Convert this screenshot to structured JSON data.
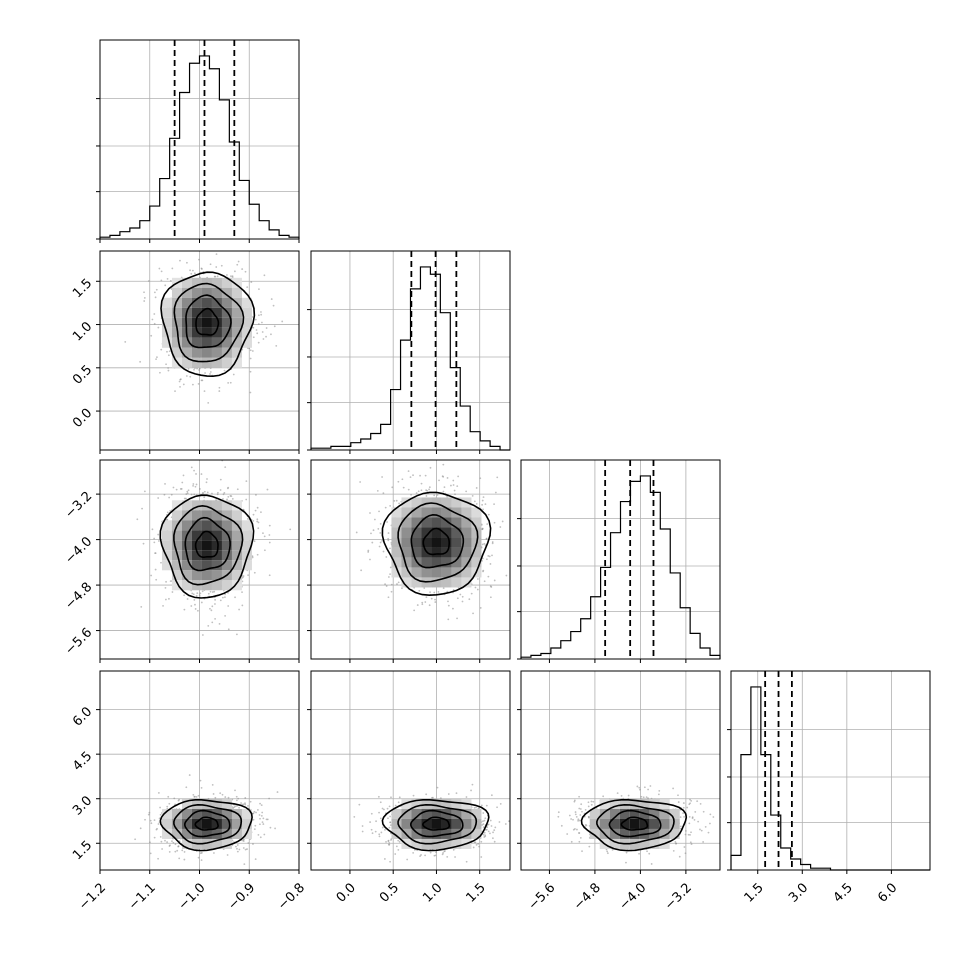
{
  "chart_data": {
    "type": "corner",
    "params": [
      {
        "ticks": [
          "−1.2",
          "−1.1",
          "−1.0",
          "−0.9",
          "−0.8"
        ],
        "tick_values": [
          -1.2,
          -1.1,
          -1.0,
          -0.9,
          -0.8
        ],
        "range": [
          -1.2,
          -0.8
        ],
        "quantiles": [
          -1.05,
          -0.99,
          -0.93
        ]
      },
      {
        "ticks": [
          "0.0",
          "0.5",
          "1.0",
          "1.5"
        ],
        "tick_values": [
          0.0,
          0.5,
          1.0,
          1.5
        ],
        "range": [
          -0.45,
          1.85
        ],
        "quantiles": [
          0.71,
          0.99,
          1.23
        ]
      },
      {
        "ticks": [
          "−5.6",
          "−4.8",
          "−4.0",
          "−3.2"
        ],
        "tick_values": [
          -5.6,
          -4.8,
          -4.0,
          -3.2
        ],
        "range": [
          -6.1,
          -2.6
        ],
        "quantiles": [
          -4.62,
          -4.18,
          -3.77
        ]
      },
      {
        "ticks": [
          "1.5",
          "3.0",
          "4.5",
          "6.0"
        ],
        "tick_values": [
          1.5,
          3.0,
          4.5,
          6.0
        ],
        "range": [
          0.6,
          7.3
        ],
        "quantiles": [
          1.75,
          2.2,
          2.65
        ]
      }
    ],
    "histograms": [
      [
        0.01,
        0.02,
        0.04,
        0.06,
        0.1,
        0.18,
        0.33,
        0.55,
        0.8,
        0.96,
        1.0,
        0.93,
        0.76,
        0.53,
        0.32,
        0.19,
        0.1,
        0.05,
        0.02,
        0.01
      ],
      [
        0.01,
        0.01,
        0.02,
        0.02,
        0.04,
        0.06,
        0.09,
        0.14,
        0.33,
        0.6,
        0.88,
        1.0,
        0.96,
        0.75,
        0.45,
        0.24,
        0.1,
        0.05,
        0.02,
        0.0
      ],
      [
        0.01,
        0.02,
        0.03,
        0.06,
        0.1,
        0.15,
        0.22,
        0.34,
        0.5,
        0.69,
        0.86,
        0.97,
        1.0,
        0.91,
        0.71,
        0.47,
        0.28,
        0.14,
        0.06,
        0.02
      ],
      [
        0.08,
        0.63,
        1.0,
        0.63,
        0.3,
        0.12,
        0.06,
        0.03,
        0.01,
        0.01,
        0.0,
        0.0,
        0.0,
        0.0,
        0.0,
        0.0,
        0.0,
        0.0,
        0.0,
        0.0
      ]
    ],
    "pairs": [
      {
        "x": 0,
        "y": 1,
        "center": [
          -0.985,
          1.02
        ],
        "sx": 0.045,
        "sy": 0.3
      },
      {
        "x": 0,
        "y": 2,
        "center": [
          -0.985,
          -4.1
        ],
        "sx": 0.045,
        "sy": 0.45
      },
      {
        "x": 1,
        "y": 2,
        "center": [
          1.0,
          -4.05
        ],
        "sx": 0.3,
        "sy": 0.45
      },
      {
        "x": 0,
        "y": 3,
        "center": [
          -0.985,
          2.15
        ],
        "sx": 0.045,
        "sy": 0.42
      },
      {
        "x": 1,
        "y": 3,
        "center": [
          1.0,
          2.15
        ],
        "sx": 0.3,
        "sy": 0.42
      },
      {
        "x": 2,
        "y": 3,
        "center": [
          -4.1,
          2.15
        ],
        "sx": 0.45,
        "sy": 0.42
      }
    ],
    "contour_levels_sigma": [
      0.5,
      1.0,
      1.5,
      2.0
    ],
    "grid": true
  }
}
